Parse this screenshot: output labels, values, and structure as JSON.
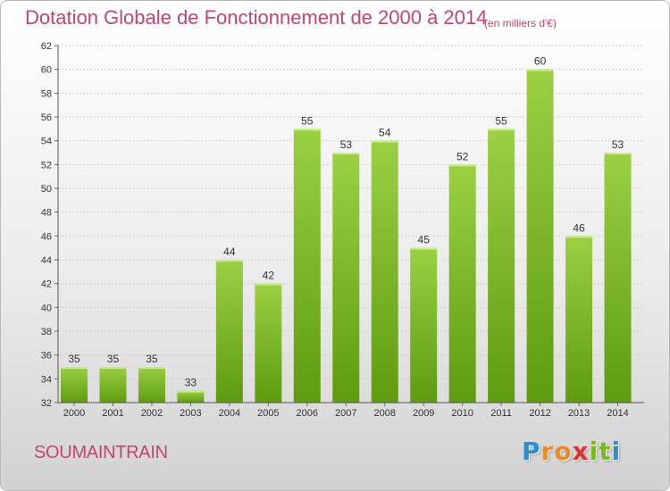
{
  "title": "Dotation Globale de Fonctionnement de 2000 à 2014",
  "unit": "(en milliers d'€)",
  "commune": "SOUMAINTRAIN",
  "logo": {
    "letters": [
      "P",
      "r",
      "o",
      "x",
      "i",
      "t",
      "i"
    ],
    "colors": [
      "#2a8fd0",
      "#e98a2a",
      "#e98a2a",
      "#e0332f",
      "#79b823",
      "#79b823",
      "#2a8fd0"
    ]
  },
  "colors": {
    "bar_top": "#9bd044",
    "bar_bottom": "#5e9b10",
    "title": "#c2456c",
    "grid": "#cfcfcf"
  },
  "chart_data": {
    "type": "bar",
    "title": "Dotation Globale de Fonctionnement de 2000 à 2014",
    "subtitle": "(en milliers d'€)",
    "categories": [
      "2000",
      "2001",
      "2002",
      "2003",
      "2004",
      "2005",
      "2006",
      "2007",
      "2008",
      "2009",
      "2010",
      "2011",
      "2012",
      "2013",
      "2014"
    ],
    "values": [
      35,
      35,
      35,
      33,
      44,
      42,
      55,
      53,
      54,
      45,
      52,
      55,
      60,
      46,
      53
    ],
    "xlabel": "",
    "ylabel": "",
    "ylim": [
      32,
      62
    ],
    "yticks": [
      32,
      34,
      36,
      38,
      40,
      42,
      44,
      46,
      48,
      50,
      52,
      54,
      56,
      58,
      60,
      62
    ],
    "grid": true,
    "data_labels": true
  }
}
